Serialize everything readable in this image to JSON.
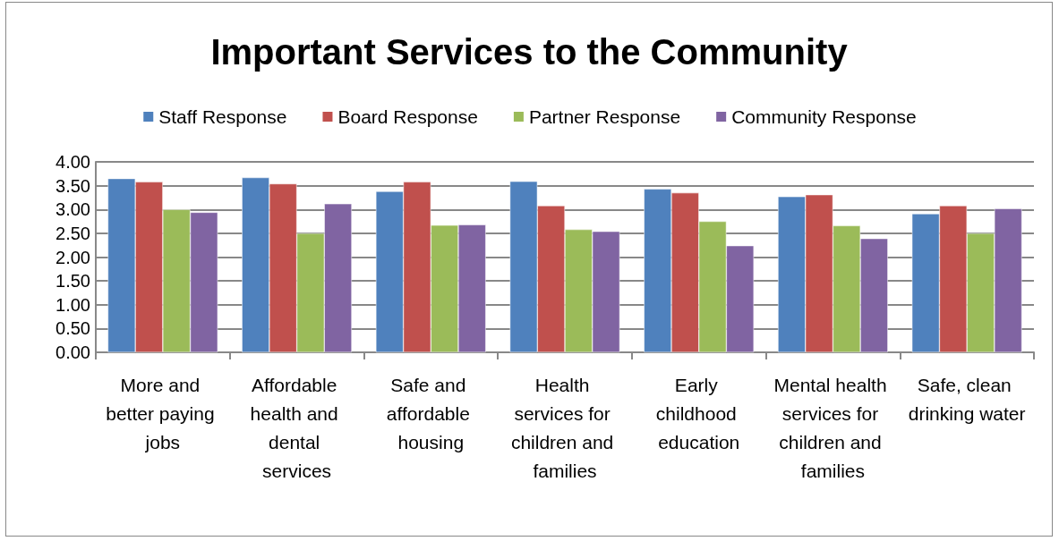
{
  "chart_data": {
    "type": "bar",
    "title": "Important Services to the Community",
    "categories": [
      "More and better paying jobs",
      "Affordable health and dental services",
      "Safe and affordable housing",
      "Health services for children and families",
      "Early childhood education",
      "Mental health services for children and families",
      "Safe, clean drinking water"
    ],
    "series": [
      {
        "name": "Staff Response",
        "color": "#4f81bd",
        "values": [
          3.65,
          3.67,
          3.38,
          3.59,
          3.43,
          3.27,
          2.91
        ]
      },
      {
        "name": "Board Response",
        "color": "#c0504d",
        "values": [
          3.58,
          3.54,
          3.58,
          3.08,
          3.35,
          3.31,
          3.08
        ]
      },
      {
        "name": "Partner Response",
        "color": "#9bbb59",
        "values": [
          3.0,
          2.5,
          2.67,
          2.58,
          2.75,
          2.66,
          2.5
        ]
      },
      {
        "name": "Community Response",
        "color": "#8064a2",
        "values": [
          2.94,
          3.12,
          2.68,
          2.54,
          2.24,
          2.39,
          3.02
        ]
      }
    ],
    "ylim": [
      0,
      4
    ],
    "yticks": [
      {
        "value": 0,
        "label": "0.00"
      },
      {
        "value": 0.5,
        "label": "0.50"
      },
      {
        "value": 1,
        "label": "1.00"
      },
      {
        "value": 1.5,
        "label": "1.50"
      },
      {
        "value": 2,
        "label": "2.00"
      },
      {
        "value": 2.5,
        "label": "2.50"
      },
      {
        "value": 3,
        "label": "3.00"
      },
      {
        "value": 3.5,
        "label": "3.50"
      },
      {
        "value": 4,
        "label": "4.00"
      }
    ],
    "grid": "y",
    "legend": "top"
  }
}
